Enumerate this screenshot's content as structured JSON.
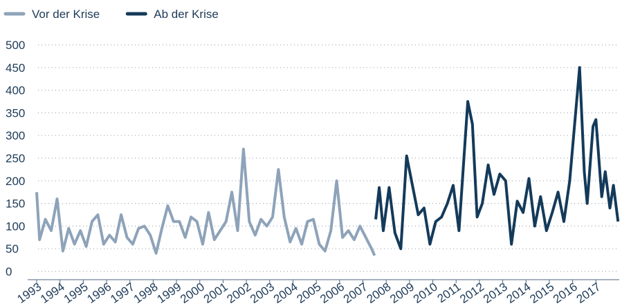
{
  "chart_data": {
    "type": "line",
    "xlim": [
      1993,
      2018
    ],
    "xticks": [
      1993,
      1994,
      1995,
      1996,
      1997,
      1998,
      1999,
      2000,
      2001,
      2002,
      2003,
      2004,
      2005,
      2006,
      2007,
      2008,
      2009,
      2010,
      2011,
      2012,
      2013,
      2014,
      2015,
      2016,
      2017
    ],
    "ylim": [
      0,
      500
    ],
    "yticks": [
      0,
      50,
      100,
      150,
      200,
      250,
      300,
      350,
      400,
      450,
      500
    ],
    "grid": true,
    "legend": "top-left",
    "series": [
      {
        "name": "Vor der Krise",
        "color": "#8ea3b9",
        "x": [
          1993.0,
          1993.125,
          1993.375,
          1993.625,
          1993.875,
          1994.125,
          1994.375,
          1994.625,
          1994.875,
          1995.125,
          1995.375,
          1995.625,
          1995.875,
          1996.125,
          1996.375,
          1996.625,
          1996.875,
          1997.125,
          1997.375,
          1997.625,
          1997.875,
          1998.125,
          1998.375,
          1998.625,
          1998.875,
          1999.125,
          1999.375,
          1999.625,
          1999.875,
          2000.125,
          2000.375,
          2000.625,
          2000.875,
          2001.125,
          2001.375,
          2001.625,
          2001.875,
          2002.125,
          2002.375,
          2002.625,
          2002.875,
          2003.125,
          2003.375,
          2003.625,
          2003.875,
          2004.125,
          2004.375,
          2004.625,
          2004.875,
          2005.125,
          2005.375,
          2005.625,
          2005.875,
          2006.125,
          2006.375,
          2006.625,
          2006.875,
          2007.125,
          2007.375,
          2007.5
        ],
        "values": [
          175,
          70,
          115,
          90,
          160,
          45,
          95,
          60,
          90,
          55,
          110,
          125,
          60,
          80,
          65,
          125,
          75,
          60,
          95,
          100,
          80,
          40,
          95,
          145,
          110,
          110,
          75,
          120,
          110,
          60,
          130,
          70,
          90,
          110,
          175,
          90,
          270,
          110,
          80,
          115,
          100,
          120,
          225,
          120,
          65,
          95,
          60,
          110,
          115,
          60,
          45,
          90,
          200,
          75,
          90,
          70,
          100,
          75,
          50,
          35
        ]
      },
      {
        "name": "Ab der Krise",
        "color": "#143a5a",
        "x": [
          2007.55,
          2007.7,
          2007.875,
          2008.125,
          2008.375,
          2008.625,
          2008.875,
          2009.125,
          2009.375,
          2009.625,
          2009.875,
          2010.125,
          2010.375,
          2010.625,
          2010.875,
          2011.125,
          2011.5,
          2011.7,
          2011.9,
          2012.125,
          2012.375,
          2012.625,
          2012.875,
          2013.125,
          2013.375,
          2013.625,
          2013.875,
          2014.125,
          2014.375,
          2014.625,
          2014.875,
          2015.125,
          2015.375,
          2015.625,
          2015.875,
          2016.3,
          2016.5,
          2016.625,
          2016.875,
          2017.0,
          2017.25,
          2017.4,
          2017.6,
          2017.75,
          2017.95
        ],
        "values": [
          115,
          185,
          90,
          185,
          85,
          50,
          255,
          190,
          125,
          140,
          60,
          110,
          120,
          150,
          190,
          90,
          375,
          325,
          120,
          150,
          235,
          170,
          215,
          200,
          60,
          155,
          130,
          205,
          100,
          165,
          90,
          130,
          175,
          110,
          200,
          450,
          220,
          150,
          320,
          335,
          165,
          220,
          140,
          190,
          110
        ]
      }
    ]
  }
}
